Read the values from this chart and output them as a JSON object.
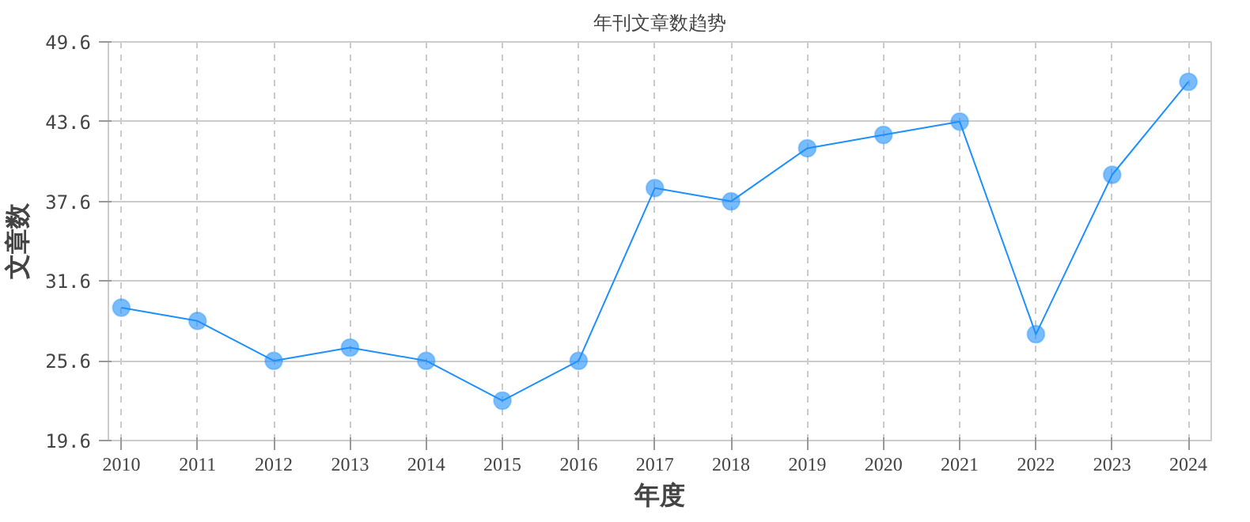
{
  "chart_data": {
    "type": "line",
    "title": "年刊文章数趋势",
    "xlabel": "年度",
    "ylabel": "文章数",
    "categories": [
      "2010",
      "2011",
      "2012",
      "2013",
      "2014",
      "2015",
      "2016",
      "2017",
      "2018",
      "2019",
      "2020",
      "2021",
      "2022",
      "2023",
      "2024"
    ],
    "series": [
      {
        "color": "#1e90ff",
        "values": [
          29.6,
          28.6,
          25.6,
          26.6,
          25.6,
          22.6,
          25.6,
          38.6,
          37.6,
          41.6,
          42.6,
          43.6,
          27.6,
          39.6,
          46.6
        ]
      }
    ],
    "ylim": [
      19.6,
      49.6
    ],
    "yticks": [
      19.6,
      25.6,
      31.6,
      37.6,
      43.6,
      49.6
    ],
    "grid": true,
    "marker": "circle",
    "line_style": "solid"
  }
}
